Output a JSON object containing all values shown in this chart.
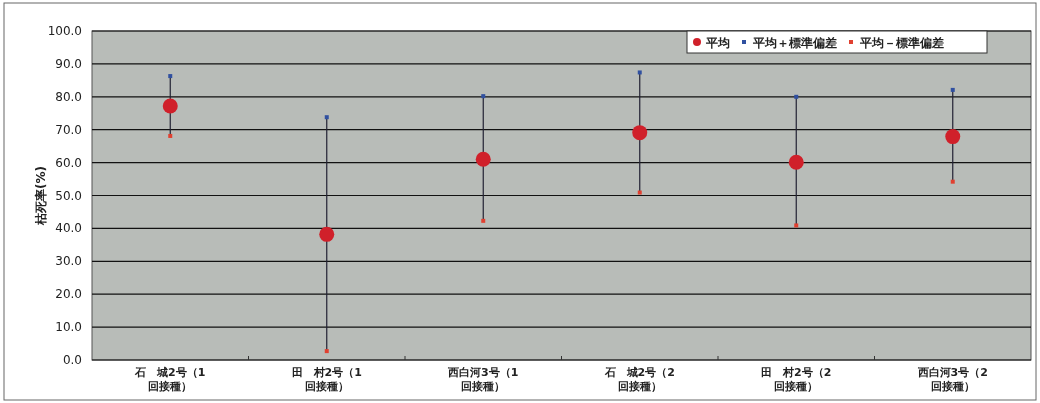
{
  "chart_data": {
    "type": "scatter",
    "ylabel": "枯死率(%)",
    "categories": [
      "石　城2号（1回接種）",
      "田　村2号（1回接種）",
      "西白河3号（1回接種）",
      "石　城2号（2回接種）",
      "田　村2号（2回接種）",
      "西白河3号（2回接種）"
    ],
    "series": [
      {
        "name": "平均",
        "color": "#d0202a",
        "marker": "circle",
        "values": [
          77.2,
          38.2,
          61.0,
          69.1,
          60.1,
          67.9
        ]
      },
      {
        "name": "平均＋標準偏差",
        "color": "#3050a0",
        "marker": "square",
        "values": [
          86.3,
          73.8,
          80.2,
          87.4,
          80.0,
          82.1
        ]
      },
      {
        "name": "平均－標準偏差",
        "color": "#e04030",
        "marker": "square",
        "values": [
          68.1,
          2.7,
          42.3,
          50.9,
          40.9,
          54.2
        ]
      }
    ],
    "ylim": [
      0,
      100
    ],
    "yticks": [
      {
        "value": 0,
        "label": "0.0"
      },
      {
        "value": 10,
        "label": "10.0"
      },
      {
        "value": 20,
        "label": "20.0"
      },
      {
        "value": 30,
        "label": "30.0"
      },
      {
        "value": 40,
        "label": "40.0"
      },
      {
        "value": 50,
        "label": "50.0"
      },
      {
        "value": 60,
        "label": "60.0"
      },
      {
        "value": 70,
        "label": "70.0"
      },
      {
        "value": 80,
        "label": "80.0"
      },
      {
        "value": 90,
        "label": "90.0"
      },
      {
        "value": 100,
        "label": "100.0"
      }
    ],
    "grid": "y",
    "legend": "top right"
  }
}
